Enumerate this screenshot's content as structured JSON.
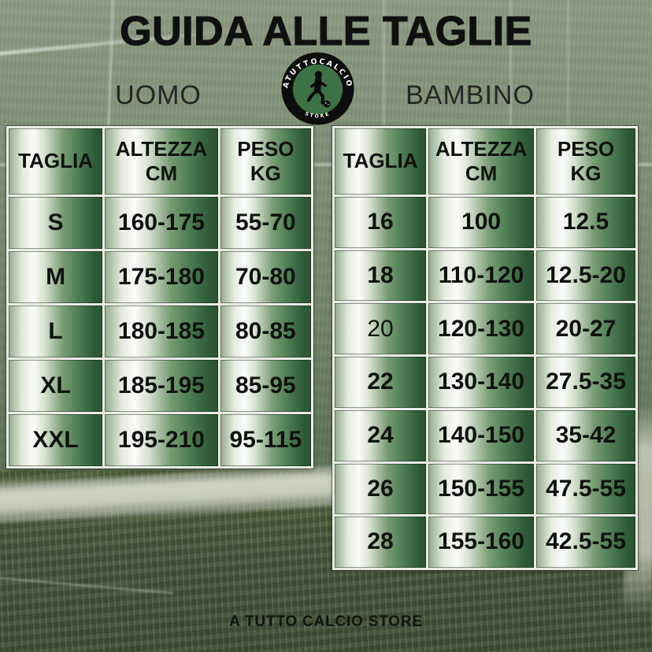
{
  "title": "GUIDA ALLE TAGLIE",
  "footer": "A TUTTO CALCIO STORE",
  "logo": {
    "arc_text": "ATUTTOCALCIO",
    "bottom_text": "STORE",
    "icon": "soccer-player-icon",
    "ball_icon": "soccer-ball-icon"
  },
  "colors": {
    "cell_dark_green": "#2a5232",
    "cell_highlight": "#fafbf8",
    "pitch_top_green": "#85927b",
    "pitch_grass_green": "#4d5c3e",
    "painted_line_white": "#d2d5c6",
    "logo_ring_black": "#0d0d0d",
    "logo_inner_green": "#3c7245",
    "text_black": "#101010"
  },
  "tables": [
    {
      "id": "uomo",
      "label": "UOMO",
      "headers": [
        {
          "lines": [
            "TAGLIA"
          ]
        },
        {
          "lines": [
            "ALTEZZA",
            "CM"
          ]
        },
        {
          "lines": [
            "PESO",
            "KG"
          ]
        }
      ],
      "rows": [
        [
          "S",
          "160-175",
          "55-70"
        ],
        [
          "M",
          "175-180",
          "70-80"
        ],
        [
          "L",
          "180-185",
          "80-85"
        ],
        [
          "XL",
          "185-195",
          "85-95"
        ],
        [
          "XXL",
          "195-210",
          "95-115"
        ]
      ],
      "light_cells": []
    },
    {
      "id": "bambino",
      "label": "BAMBINO",
      "headers": [
        {
          "lines": [
            "TAGLIA"
          ]
        },
        {
          "lines": [
            "ALTEZZA",
            "CM"
          ]
        },
        {
          "lines": [
            "PESO",
            "KG"
          ]
        }
      ],
      "rows": [
        [
          "16",
          "100",
          "12.5"
        ],
        [
          "18",
          "110-120",
          "12.5-20"
        ],
        [
          "20",
          "120-130",
          "20-27"
        ],
        [
          "22",
          "130-140",
          "27.5-35"
        ],
        [
          "24",
          "140-150",
          "35-42"
        ],
        [
          "26",
          "150-155",
          "47.5-55"
        ],
        [
          "28",
          "155-160",
          "42.5-55"
        ]
      ],
      "light_cells": [
        [
          2,
          0
        ]
      ]
    }
  ]
}
